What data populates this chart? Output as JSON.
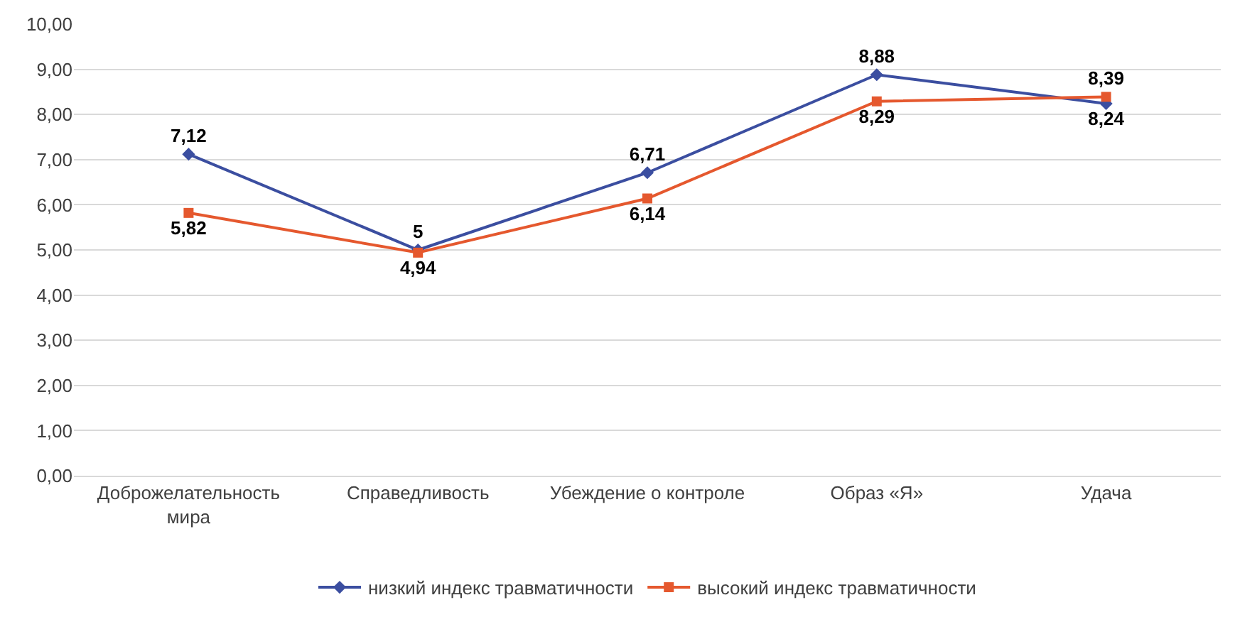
{
  "chart_data": {
    "type": "line",
    "categories": [
      "Доброжелательность мира",
      "Справедливость",
      "Убеждение о контроле",
      "Образ «Я»",
      "Удача"
    ],
    "series": [
      {
        "name": "низкий индекс травматичности",
        "color": "#3b4ea0",
        "marker": "diamond",
        "values": [
          7.12,
          5,
          6.71,
          8.88,
          8.24
        ],
        "value_labels": [
          "7,12",
          "5",
          "6,71",
          "8,88",
          "8,24"
        ]
      },
      {
        "name": "высокий индекс травматичности",
        "color": "#e5582e",
        "marker": "square",
        "values": [
          5.82,
          4.94,
          6.14,
          8.29,
          8.39
        ],
        "value_labels": [
          "5,82",
          "4,94",
          "6,14",
          "8,29",
          "8,39"
        ]
      }
    ],
    "ylim": [
      0,
      10
    ],
    "yticks": [
      {
        "value": 0,
        "label": "0,00"
      },
      {
        "value": 1,
        "label": "1,00"
      },
      {
        "value": 2,
        "label": "2,00"
      },
      {
        "value": 3,
        "label": "3,00"
      },
      {
        "value": 4,
        "label": "4,00"
      },
      {
        "value": 5,
        "label": "5,00"
      },
      {
        "value": 6,
        "label": "6,00"
      },
      {
        "value": 7,
        "label": "7,00"
      },
      {
        "value": 8,
        "label": "8,00"
      },
      {
        "value": 9,
        "label": "9,00"
      },
      {
        "value": 10,
        "label": "10,00"
      }
    ],
    "grid": "y",
    "legend": "bottom",
    "line_style": "solid"
  }
}
